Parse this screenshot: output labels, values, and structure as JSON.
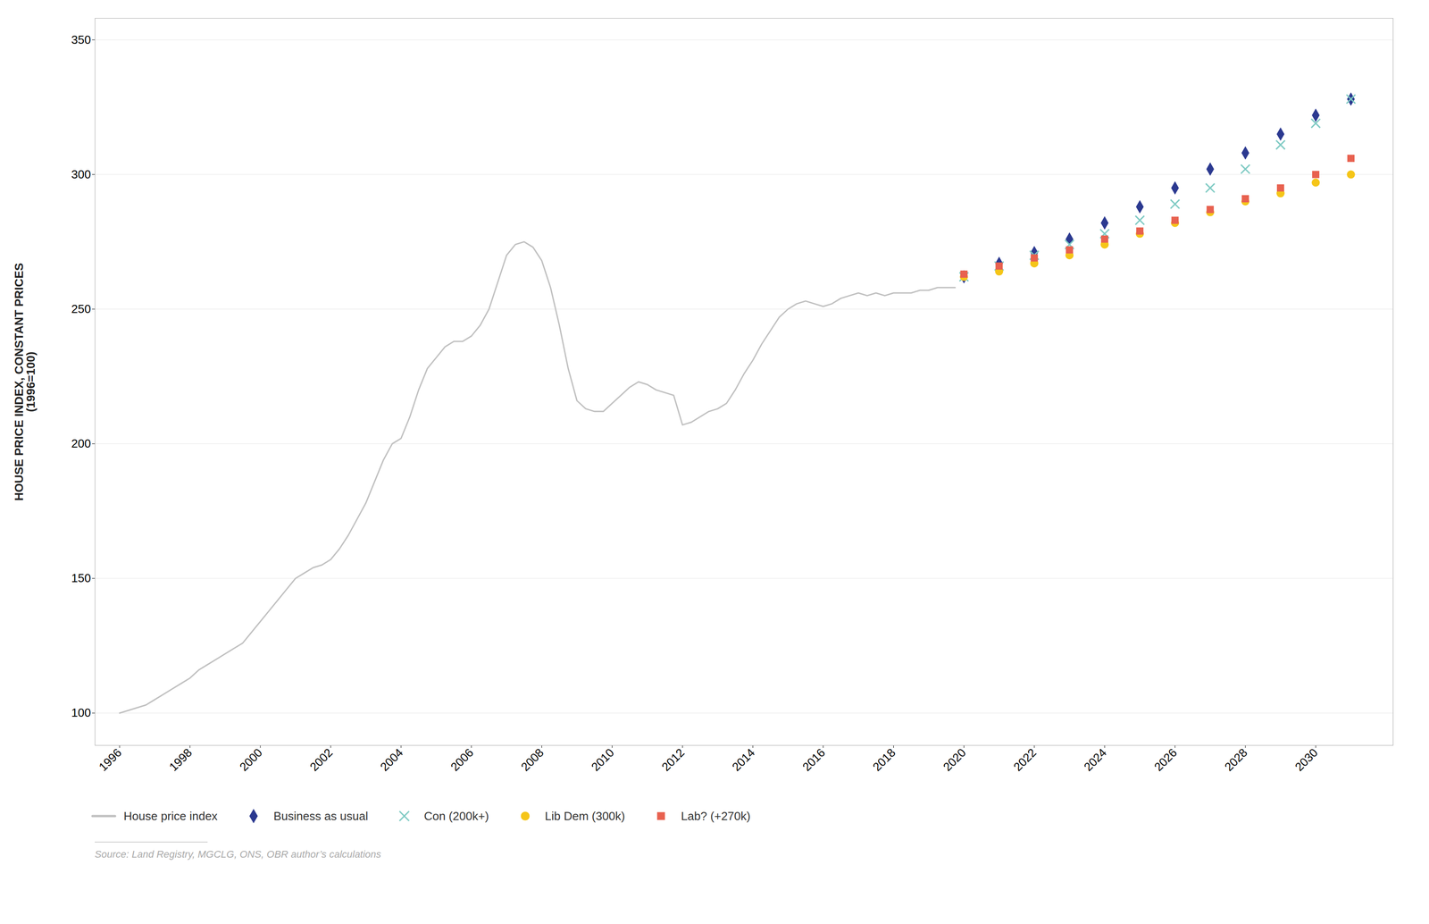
{
  "chart_data": {
    "type": "line",
    "ylabel": "HOUSE PRICE INDEX, CONSTANT PRICES\n(1996=100)",
    "source": "Source:  Land Registry, MGCLG, ONS, OBR author’s calculations",
    "xlim": [
      1995.3,
      2032.2
    ],
    "xticks": [
      1996,
      1998,
      2000,
      2002,
      2004,
      2006,
      2008,
      2010,
      2012,
      2014,
      2016,
      2018,
      2020,
      2022,
      2024,
      2026,
      2028,
      2030
    ],
    "ylim": [
      88,
      358
    ],
    "yticks": [
      100,
      150,
      200,
      250,
      300,
      350
    ],
    "grid": "y",
    "legend": "bottom",
    "series": [
      {
        "name": "House price index",
        "type": "line",
        "color": "#c0c0c0",
        "x": [
          1996,
          1996.25,
          1996.5,
          1996.75,
          1997,
          1997.25,
          1997.5,
          1997.75,
          1998,
          1998.25,
          1998.5,
          1998.75,
          1999,
          1999.25,
          1999.5,
          1999.75,
          2000,
          2000.25,
          2000.5,
          2000.75,
          2001,
          2001.25,
          2001.5,
          2001.75,
          2002,
          2002.25,
          2002.5,
          2002.75,
          2003,
          2003.25,
          2003.5,
          2003.75,
          2004,
          2004.25,
          2004.5,
          2004.75,
          2005,
          2005.25,
          2005.5,
          2005.75,
          2006,
          2006.25,
          2006.5,
          2006.75,
          2007,
          2007.25,
          2007.5,
          2007.75,
          2008,
          2008.25,
          2008.5,
          2008.75,
          2009,
          2009.25,
          2009.5,
          2009.75,
          2010,
          2010.25,
          2010.5,
          2010.75,
          2011,
          2011.25,
          2011.5,
          2011.75,
          2012,
          2012.25,
          2012.5,
          2012.75,
          2013,
          2013.25,
          2013.5,
          2013.75,
          2014,
          2014.25,
          2014.5,
          2014.75,
          2015,
          2015.25,
          2015.5,
          2015.75,
          2016,
          2016.25,
          2016.5,
          2016.75,
          2017,
          2017.25,
          2017.5,
          2017.75,
          2018,
          2018.25,
          2018.5,
          2018.75,
          2019,
          2019.25,
          2019.5,
          2019.75
        ],
        "values": [
          100,
          101,
          102,
          103,
          105,
          107,
          109,
          111,
          113,
          116,
          118,
          120,
          122,
          124,
          126,
          130,
          134,
          138,
          142,
          146,
          150,
          152,
          154,
          155,
          157,
          161,
          166,
          172,
          178,
          186,
          194,
          200,
          202,
          210,
          220,
          228,
          232,
          236,
          238,
          238,
          240,
          244,
          250,
          260,
          270,
          274,
          275,
          273,
          268,
          258,
          244,
          228,
          216,
          213,
          212,
          212,
          215,
          218,
          221,
          223,
          222,
          220,
          219,
          218,
          207,
          208,
          210,
          212,
          213,
          215,
          220,
          226,
          231,
          237,
          242,
          247,
          250,
          252,
          253,
          252,
          251,
          252,
          254,
          255,
          256,
          255,
          256,
          255,
          256,
          256,
          256,
          257,
          257,
          258,
          258,
          258
        ]
      },
      {
        "name": "Business as usual",
        "type": "scatter",
        "marker": "diamond",
        "color": "#2b3990",
        "x": [
          2020,
          2021,
          2022,
          2023,
          2024,
          2025,
          2026,
          2027,
          2028,
          2029,
          2030,
          2031
        ],
        "values": [
          262,
          267,
          271,
          276,
          282,
          288,
          295,
          302,
          308,
          315,
          322,
          328
        ]
      },
      {
        "name": "Con (200k+)",
        "type": "scatter",
        "marker": "x",
        "color": "#7ecac3",
        "x": [
          2020,
          2021,
          2022,
          2023,
          2024,
          2025,
          2026,
          2027,
          2028,
          2029,
          2030,
          2031
        ],
        "values": [
          262,
          266,
          270,
          274,
          278,
          283,
          289,
          295,
          302,
          311,
          319,
          328
        ]
      },
      {
        "name": "Lib Dem (300k)",
        "type": "scatter",
        "marker": "circle",
        "color": "#f5c518",
        "x": [
          2020,
          2021,
          2022,
          2023,
          2024,
          2025,
          2026,
          2027,
          2028,
          2029,
          2030,
          2031
        ],
        "values": [
          262,
          264,
          267,
          270,
          274,
          278,
          282,
          286,
          290,
          293,
          297,
          300
        ]
      },
      {
        "name": "Lab? (+270k)",
        "type": "scatter",
        "marker": "square",
        "color": "#e8614f",
        "x": [
          2020,
          2021,
          2022,
          2023,
          2024,
          2025,
          2026,
          2027,
          2028,
          2029,
          2030,
          2031
        ],
        "values": [
          263,
          266,
          269,
          272,
          276,
          279,
          283,
          287,
          291,
          295,
          300,
          306
        ]
      }
    ]
  }
}
